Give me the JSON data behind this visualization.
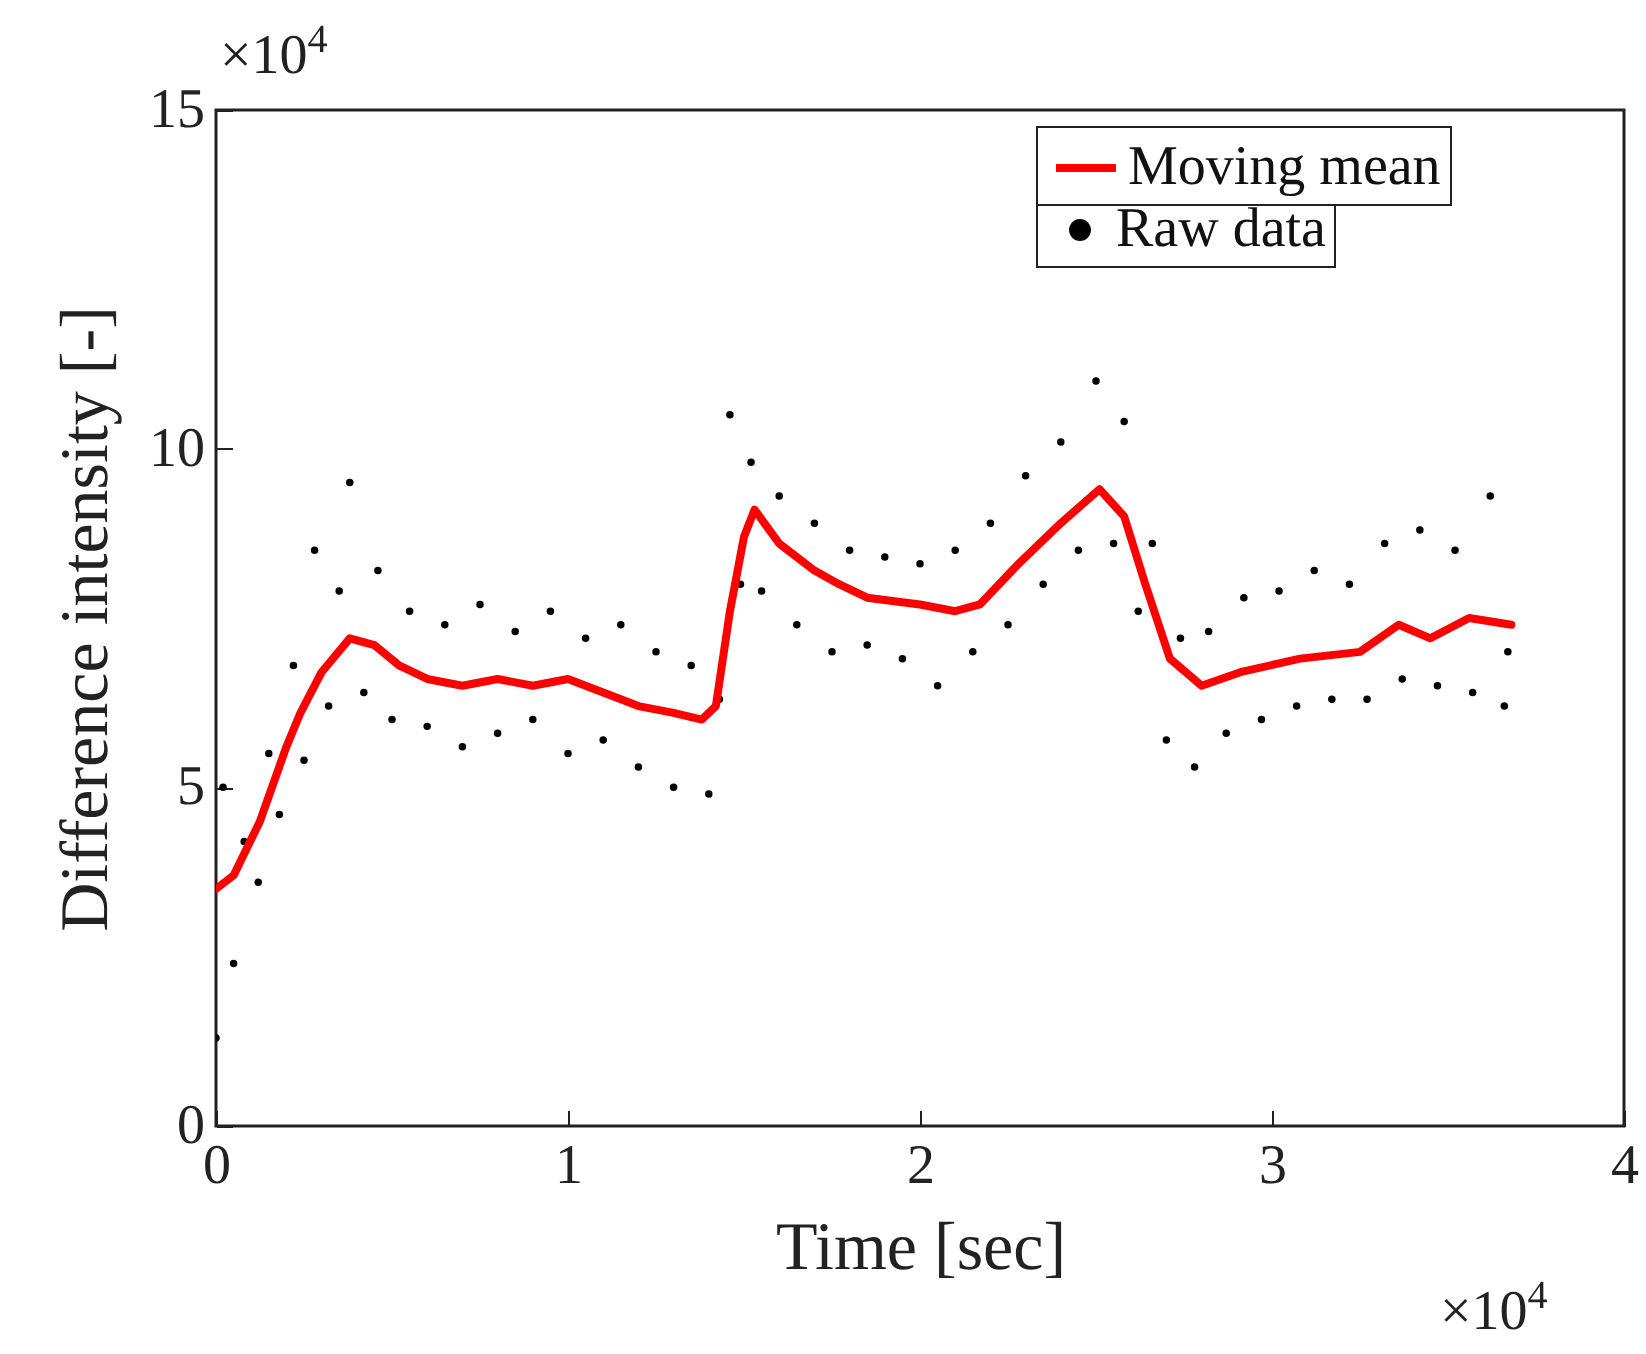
{
  "chart_data": {
    "type": "scatter",
    "xlabel": "Time [sec]",
    "ylabel": "Difference intensity [-]",
    "xlim": [
      0,
      4
    ],
    "ylim": [
      0,
      15
    ],
    "xticks": [
      0,
      1,
      2,
      3,
      4
    ],
    "yticks": [
      0,
      5,
      10,
      15
    ],
    "legend": "top right",
    "line_style": "solid",
    "annotations": [
      "×10$^{4}$",
      "×10$^{4}$"
    ],
    "series": [
      {
        "name": "Moving mean",
        "type": "line",
        "color": "#ff0000",
        "x": [
          0,
          0.05,
          0.125,
          0.2,
          0.24,
          0.3,
          0.38,
          0.45,
          0.52,
          0.6,
          0.7,
          0.8,
          0.9,
          1.0,
          1.1,
          1.2,
          1.3,
          1.38,
          1.42,
          1.46,
          1.5,
          1.53,
          1.6,
          1.7,
          1.77,
          1.85,
          2.0,
          2.1,
          2.17,
          2.28,
          2.4,
          2.51,
          2.58,
          2.64,
          2.71,
          2.8,
          2.91,
          3.08,
          3.25,
          3.36,
          3.45,
          3.56,
          3.68
        ],
        "values": [
          3.5,
          3.7,
          4.5,
          5.6,
          6.1,
          6.7,
          7.2,
          7.1,
          6.8,
          6.6,
          6.5,
          6.6,
          6.5,
          6.6,
          6.4,
          6.2,
          6.1,
          6.0,
          6.2,
          7.6,
          8.7,
          9.1,
          8.6,
          8.2,
          8.0,
          7.8,
          7.7,
          7.6,
          7.7,
          8.3,
          8.9,
          9.4,
          9.0,
          8.0,
          6.9,
          6.5,
          6.7,
          6.9,
          7.0,
          7.4,
          7.2,
          7.5,
          7.4
        ]
      },
      {
        "name": "Raw data",
        "marker": "circle",
        "color": "#000000",
        "x": [
          0,
          0.02,
          0.05,
          0.08,
          0.12,
          0.15,
          0.18,
          0.22,
          0.25,
          0.28,
          0.32,
          0.35,
          0.38,
          0.42,
          0.46,
          0.5,
          0.55,
          0.6,
          0.65,
          0.7,
          0.75,
          0.8,
          0.85,
          0.9,
          0.95,
          1.0,
          1.05,
          1.1,
          1.15,
          1.2,
          1.25,
          1.3,
          1.35,
          1.4,
          1.43,
          1.46,
          1.49,
          1.52,
          1.55,
          1.6,
          1.65,
          1.7,
          1.75,
          1.8,
          1.85,
          1.9,
          1.95,
          2.0,
          2.05,
          2.1,
          2.15,
          2.2,
          2.25,
          2.3,
          2.35,
          2.4,
          2.45,
          2.5,
          2.55,
          2.58,
          2.62,
          2.66,
          2.7,
          2.74,
          2.78,
          2.82,
          2.87,
          2.92,
          2.97,
          3.02,
          3.07,
          3.12,
          3.17,
          3.22,
          3.27,
          3.32,
          3.37,
          3.42,
          3.47,
          3.52,
          3.57,
          3.62,
          3.66,
          3.67
        ],
        "values": [
          1.3,
          5.0,
          2.4,
          4.2,
          3.6,
          5.5,
          4.6,
          6.8,
          5.4,
          8.5,
          6.2,
          7.9,
          9.5,
          6.4,
          8.2,
          6.0,
          7.6,
          5.9,
          7.4,
          5.6,
          7.7,
          5.8,
          7.3,
          6.0,
          7.6,
          5.5,
          7.2,
          5.7,
          7.4,
          5.3,
          7.0,
          5.0,
          6.8,
          4.9,
          6.3,
          10.5,
          8.0,
          9.8,
          7.9,
          9.3,
          7.4,
          8.9,
          7.0,
          8.5,
          7.1,
          8.4,
          6.9,
          8.3,
          6.5,
          8.5,
          7.0,
          8.9,
          7.4,
          9.6,
          8.0,
          10.1,
          8.5,
          11.0,
          8.6,
          10.4,
          7.6,
          8.6,
          5.7,
          7.2,
          5.3,
          7.3,
          5.8,
          7.8,
          6.0,
          7.9,
          6.2,
          8.2,
          6.3,
          8.0,
          6.3,
          8.6,
          6.6,
          8.8,
          6.5,
          8.5,
          6.4,
          9.3,
          6.2,
          7.0
        ]
      }
    ]
  }
}
